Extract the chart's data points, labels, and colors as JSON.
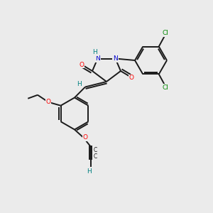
{
  "background_color": "#ebebeb",
  "bond_color": "#1a1a1a",
  "atom_colors": {
    "O": "#ff0000",
    "N": "#0000cc",
    "Cl": "#008800",
    "C": "#1a1a1a",
    "H": "#008080"
  },
  "figsize": [
    3.0,
    3.0
  ],
  "dpi": 100,
  "xlim": [
    0,
    12
  ],
  "ylim": [
    0,
    12
  ]
}
